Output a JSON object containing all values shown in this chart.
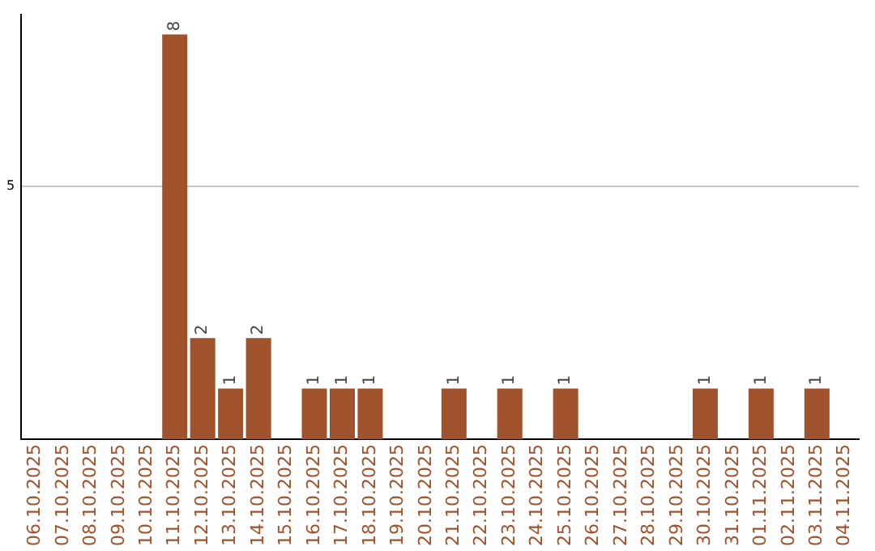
{
  "chart_data": {
    "type": "bar",
    "categories": [
      "06.10.2025",
      "07.10.2025",
      "08.10.2025",
      "09.10.2025",
      "10.10.2025",
      "11.10.2025",
      "12.10.2025",
      "13.10.2025",
      "14.10.2025",
      "15.10.2025",
      "16.10.2025",
      "17.10.2025",
      "18.10.2025",
      "19.10.2025",
      "20.10.2025",
      "21.10.2025",
      "22.10.2025",
      "23.10.2025",
      "24.10.2025",
      "25.10.2025",
      "26.10.2025",
      "27.10.2025",
      "28.10.2025",
      "29.10.2025",
      "30.10.2025",
      "31.10.2025",
      "01.11.2025",
      "02.11.2025",
      "03.11.2025",
      "04.11.2025"
    ],
    "values": [
      null,
      null,
      null,
      null,
      null,
      8,
      2,
      1,
      2,
      null,
      1,
      1,
      1,
      null,
      null,
      1,
      null,
      1,
      null,
      1,
      null,
      null,
      null,
      null,
      1,
      null,
      1,
      null,
      1,
      null
    ],
    "color": "#a0522d",
    "ylim": [
      0,
      8.4
    ],
    "yticks": [
      5
    ],
    "grid": "y",
    "data_labels": true,
    "legend": false
  }
}
